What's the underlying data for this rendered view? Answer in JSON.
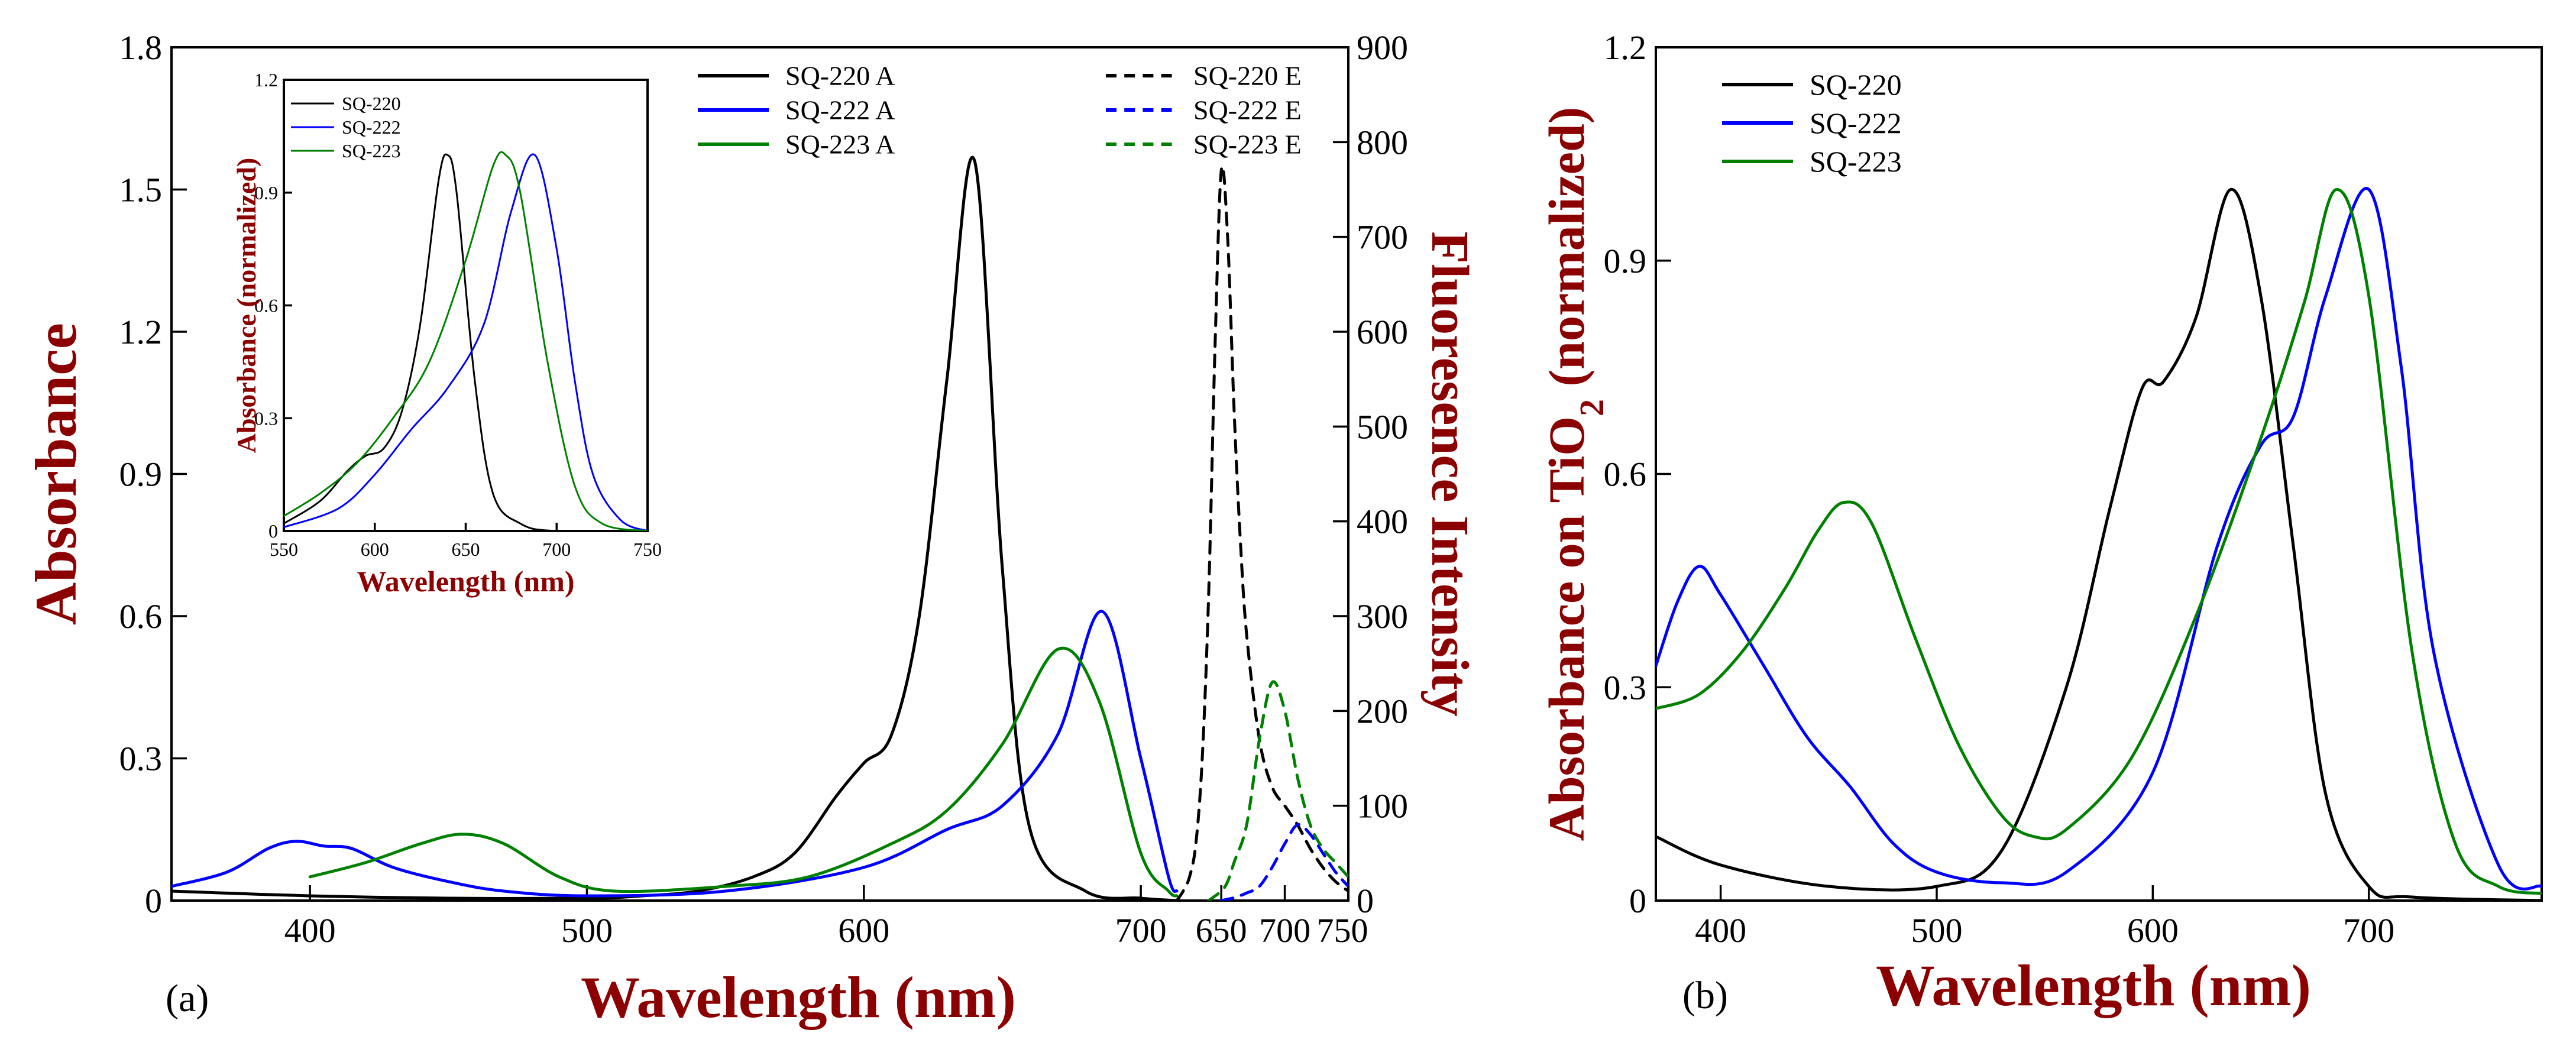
{
  "chart_data": [
    {
      "panel_label": "(a)",
      "type": "line",
      "xlabel": "Wavelength (nm)",
      "ylabel": "Absorbance",
      "ylabel2": "Fluoresence Intensity",
      "axis_color": "#8b0000",
      "grid": false,
      "legend_position": "top",
      "x_bottom_a_ticks": [
        400,
        500,
        600,
        700
      ],
      "x_bottom_e_ticks": [
        650,
        700,
        750
      ],
      "y_left_lim": [
        0,
        1.8
      ],
      "y_left_ticks": [
        "0",
        "0.3",
        "0.6",
        "0.9",
        "1.2",
        "1.5",
        "1.8"
      ],
      "y_right_lim": [
        0,
        900
      ],
      "y_right_ticks": [
        "0",
        "100",
        "200",
        "300",
        "400",
        "500",
        "600",
        "700",
        "800",
        "900"
      ],
      "series": [
        {
          "name": "SQ-220 A",
          "color": "#000000",
          "style": "solid",
          "axis": "absorbance",
          "x": [
            350,
            400,
            450,
            500,
            520,
            540,
            560,
            575,
            590,
            600,
            610,
            620,
            630,
            640,
            650,
            660,
            680,
            700,
            713
          ],
          "y": [
            0.02,
            0.01,
            0.005,
            0.005,
            0.01,
            0.02,
            0.05,
            0.1,
            0.22,
            0.29,
            0.35,
            0.6,
            1.1,
            1.56,
            0.7,
            0.15,
            0.02,
            0.005,
            0.0
          ]
        },
        {
          "name": "SQ-222 A",
          "color": "#0000ff",
          "style": "solid",
          "axis": "absorbance",
          "x": [
            350,
            370,
            385,
            395,
            405,
            415,
            430,
            450,
            470,
            500,
            550,
            600,
            630,
            650,
            670,
            686,
            700,
            710,
            713
          ],
          "y": [
            0.03,
            0.06,
            0.11,
            0.125,
            0.115,
            0.11,
            0.07,
            0.04,
            0.02,
            0.01,
            0.02,
            0.07,
            0.15,
            0.2,
            0.35,
            0.61,
            0.3,
            0.05,
            0.02
          ]
        },
        {
          "name": "SQ-223 A",
          "color": "#008000",
          "style": "solid",
          "axis": "absorbance",
          "x": [
            400,
            420,
            440,
            455,
            470,
            490,
            510,
            550,
            580,
            610,
            630,
            650,
            670,
            685,
            700,
            710,
            713
          ],
          "y": [
            0.05,
            0.08,
            0.12,
            0.14,
            0.12,
            0.05,
            0.02,
            0.03,
            0.05,
            0.12,
            0.19,
            0.33,
            0.53,
            0.42,
            0.1,
            0.02,
            0.01
          ]
        },
        {
          "name": "SQ-220 E",
          "color": "#000000",
          "style": "dashed",
          "axis": "fluorescence",
          "x": [
            615,
            620,
            625,
            630,
            635,
            640,
            645,
            650,
            655,
            660,
            665,
            670,
            680,
            690,
            700,
            710,
            720,
            730,
            740,
            750
          ],
          "y": [
            0,
            10,
            25,
            60,
            150,
            320,
            580,
            770,
            700,
            520,
            380,
            280,
            170,
            120,
            100,
            80,
            55,
            35,
            20,
            10
          ]
        },
        {
          "name": "SQ-222 E",
          "color": "#0000ff",
          "style": "dashed",
          "axis": "fluorescence",
          "x": [
            650,
            660,
            670,
            680,
            690,
            700,
            710,
            720,
            730,
            740,
            750
          ],
          "y": [
            0,
            3,
            8,
            15,
            35,
            60,
            80,
            70,
            50,
            30,
            15
          ]
        },
        {
          "name": "SQ-223 E",
          "color": "#008000",
          "style": "dashed",
          "axis": "fluorescence",
          "x": [
            640,
            650,
            655,
            660,
            670,
            680,
            690,
            700,
            710,
            720,
            730,
            740,
            750
          ],
          "y": [
            0,
            10,
            20,
            40,
            80,
            170,
            230,
            200,
            130,
            80,
            55,
            40,
            25
          ]
        }
      ],
      "inset": {
        "type": "line",
        "xlabel": "Wavelength (nm)",
        "ylabel": "Absorbance (normalized)",
        "xlim": [
          550,
          750
        ],
        "ylim": [
          0,
          1.2
        ],
        "x_ticks": [
          "550",
          "600",
          "650",
          "700",
          "750"
        ],
        "y_ticks": [
          "0",
          "0.3",
          "0.6",
          "0.9",
          "1.2"
        ],
        "legend_position": "top-left",
        "series": [
          {
            "name": "SQ-220",
            "color": "#000000",
            "x": [
              550,
              570,
              585,
              595,
              605,
              615,
              625,
              635,
              640,
              645,
              655,
              665,
              680,
              700,
              750
            ],
            "y": [
              0.02,
              0.08,
              0.16,
              0.2,
              0.22,
              0.32,
              0.55,
              0.93,
              1.0,
              0.9,
              0.4,
              0.1,
              0.02,
              0.0,
              0.0
            ]
          },
          {
            "name": "SQ-222",
            "color": "#0000ff",
            "x": [
              550,
              580,
              600,
              620,
              640,
              660,
              675,
              688,
              700,
              710,
              720,
              735,
              750
            ],
            "y": [
              0.01,
              0.06,
              0.15,
              0.27,
              0.38,
              0.55,
              0.85,
              1.0,
              0.75,
              0.4,
              0.15,
              0.03,
              0.0
            ]
          },
          {
            "name": "SQ-223",
            "color": "#008000",
            "x": [
              550,
              570,
              590,
              610,
              630,
              650,
              665,
              672,
              680,
              695,
              710,
              725,
              750
            ],
            "y": [
              0.04,
              0.1,
              0.18,
              0.3,
              0.45,
              0.72,
              0.97,
              1.0,
              0.9,
              0.45,
              0.12,
              0.02,
              0.0
            ]
          }
        ]
      }
    },
    {
      "panel_label": "(b)",
      "type": "line",
      "xlabel": "Wavelength (nm)",
      "ylabel_parts": [
        "Absorbance on TiO",
        "2",
        " (normalized)"
      ],
      "axis_color": "#8b0000",
      "grid": false,
      "legend_position": "top-left",
      "xlim": [
        370,
        780
      ],
      "x_ticks": [
        "400",
        "500",
        "600",
        "700"
      ],
      "ylim": [
        0,
        1.2
      ],
      "y_ticks": [
        "0",
        "0.3",
        "0.6",
        "0.9",
        "1.2"
      ],
      "series": [
        {
          "name": "SQ-220",
          "color": "#000000",
          "x": [
            370,
            400,
            450,
            500,
            530,
            560,
            580,
            595,
            605,
            620,
            636,
            650,
            665,
            680,
            700,
            720,
            780
          ],
          "y": [
            0.09,
            0.05,
            0.02,
            0.02,
            0.07,
            0.3,
            0.55,
            0.72,
            0.73,
            0.82,
            1.0,
            0.85,
            0.5,
            0.15,
            0.02,
            0.005,
            0.0
          ]
        },
        {
          "name": "SQ-222",
          "color": "#0000ff",
          "x": [
            370,
            380,
            390,
            400,
            420,
            440,
            460,
            480,
            500,
            530,
            560,
            600,
            630,
            650,
            665,
            680,
            700,
            715,
            730,
            760,
            780
          ],
          "y": [
            0.33,
            0.42,
            0.47,
            0.43,
            0.33,
            0.23,
            0.16,
            0.08,
            0.04,
            0.025,
            0.04,
            0.18,
            0.5,
            0.64,
            0.68,
            0.85,
            1.0,
            0.75,
            0.35,
            0.05,
            0.02
          ]
        },
        {
          "name": "SQ-223",
          "color": "#008000",
          "x": [
            370,
            390,
            410,
            430,
            445,
            457,
            470,
            490,
            510,
            530,
            545,
            560,
            590,
            620,
            650,
            670,
            685,
            700,
            720,
            740,
            760,
            780
          ],
          "y": [
            0.27,
            0.29,
            0.35,
            0.44,
            0.52,
            0.56,
            0.53,
            0.37,
            0.22,
            0.12,
            0.09,
            0.1,
            0.2,
            0.4,
            0.65,
            0.84,
            1.0,
            0.85,
            0.35,
            0.08,
            0.02,
            0.01
          ]
        }
      ]
    }
  ]
}
